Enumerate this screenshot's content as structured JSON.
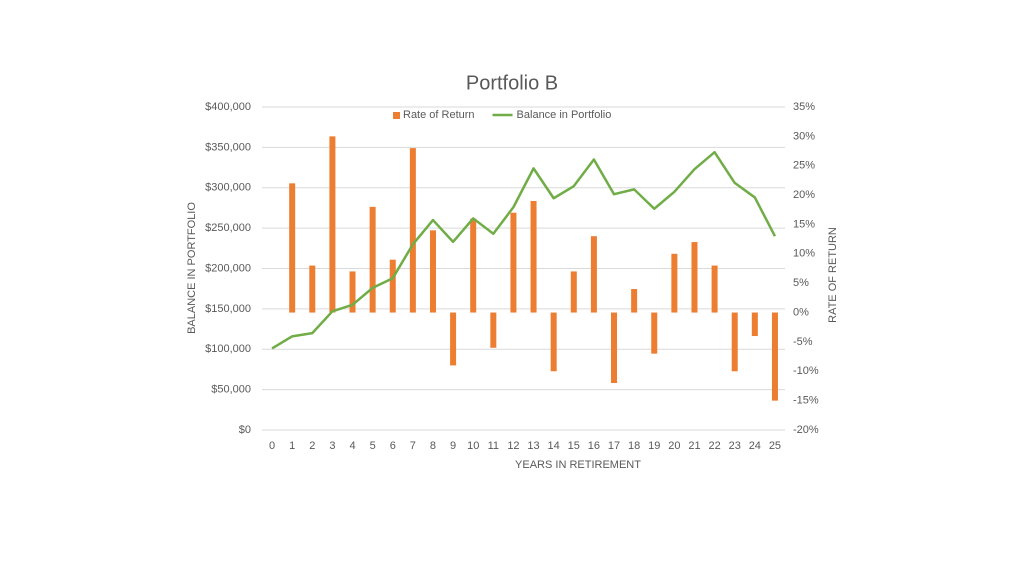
{
  "chart_data": {
    "type": "bar-line",
    "title": "Portfolio B",
    "x_label": "YEARS IN RETIREMENT",
    "y_label": "BALANCE IN PORTFOLIO",
    "y2_label": "RATE OF RETURN",
    "categories": [
      "0",
      "1",
      "2",
      "3",
      "4",
      "5",
      "6",
      "7",
      "8",
      "9",
      "10",
      "11",
      "12",
      "13",
      "14",
      "15",
      "16",
      "17",
      "18",
      "19",
      "20",
      "21",
      "22",
      "23",
      "24",
      "25"
    ],
    "series": [
      {
        "name": "Rate of Return",
        "type": "bar",
        "axis": "y2",
        "color": "#ed7d31",
        "values": [
          null,
          22,
          8,
          30,
          7,
          18,
          9,
          28,
          14,
          -9,
          16,
          -6,
          17,
          19,
          -10,
          7,
          13,
          -12,
          4,
          -7,
          10,
          12,
          8,
          -10,
          -4,
          -15
        ]
      },
      {
        "name": "Balance in Portfolio",
        "type": "line",
        "axis": "y",
        "color": "#70ad47",
        "values": [
          101000,
          116000,
          120000,
          147000,
          155000,
          176000,
          188000,
          230000,
          260000,
          233000,
          262000,
          243000,
          276000,
          324000,
          287000,
          302000,
          335000,
          292000,
          298000,
          274000,
          295000,
          323000,
          344000,
          306000,
          288000,
          240000
        ]
      }
    ],
    "ylim": [
      0,
      400000
    ],
    "yticks": [
      {
        "value": 0,
        "label": "$0"
      },
      {
        "value": 50000,
        "label": "$50,000"
      },
      {
        "value": 100000,
        "label": "$100,000"
      },
      {
        "value": 150000,
        "label": "$150,000"
      },
      {
        "value": 200000,
        "label": "$200,000"
      },
      {
        "value": 250000,
        "label": "$250,000"
      },
      {
        "value": 300000,
        "label": "$300,000"
      },
      {
        "value": 350000,
        "label": "$350,000"
      },
      {
        "value": 400000,
        "label": "$400,000"
      }
    ],
    "y2lim": [
      -20,
      35
    ],
    "y2ticks": [
      {
        "value": -20,
        "label": "-20%"
      },
      {
        "value": -15,
        "label": "-15%"
      },
      {
        "value": -10,
        "label": "-10%"
      },
      {
        "value": -5,
        "label": "-5%"
      },
      {
        "value": 0,
        "label": "0%"
      },
      {
        "value": 5,
        "label": "5%"
      },
      {
        "value": 10,
        "label": "10%"
      },
      {
        "value": 15,
        "label": "15%"
      },
      {
        "value": 20,
        "label": "20%"
      },
      {
        "value": 25,
        "label": "25%"
      },
      {
        "value": 30,
        "label": "30%"
      },
      {
        "value": 35,
        "label": "35%"
      }
    ],
    "grid": true,
    "legend": "top"
  }
}
